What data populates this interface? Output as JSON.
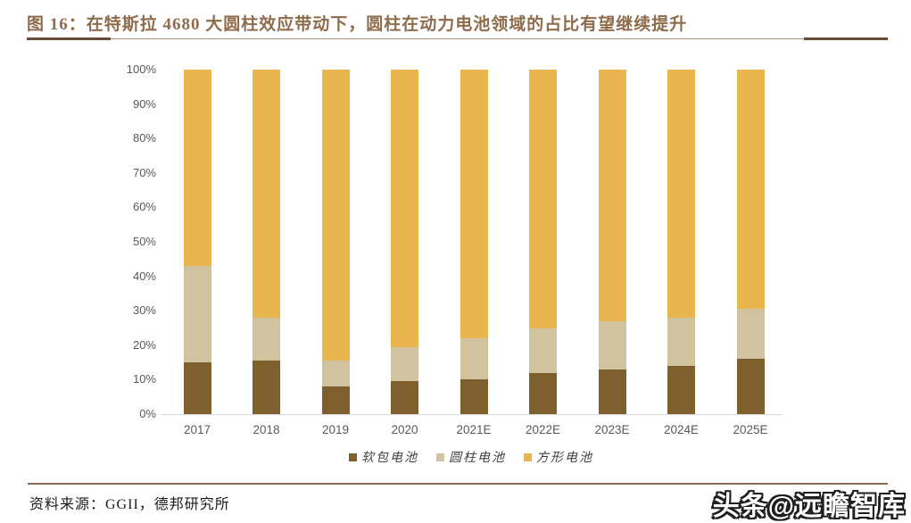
{
  "figure": {
    "title": "图 16：在特斯拉 4680 大圆柱效应带动下，圆柱在动力电池领域的占比有望继续提升",
    "source": "资料来源：GGII，德邦研究所",
    "watermark": "头条@远瞻智库"
  },
  "colors": {
    "title_text": "#8e6c4c",
    "divider_thick": "#6b4c3b",
    "divider_thin": "#a5907e",
    "bottom_divider": "#8a6a55",
    "pouch": "#7e602f",
    "cylindrical": "#d2c3a0",
    "prismatic": "#e9b54e",
    "axis_text": "#595959",
    "axis_line": "#d9d9d9"
  },
  "chart_data": {
    "type": "bar",
    "stacked": true,
    "percent_stacked": true,
    "title": "",
    "xlabel": "",
    "ylabel": "",
    "ylim": [
      0,
      100
    ],
    "grid": false,
    "legend_position": "bottom",
    "y_ticks": [
      "0%",
      "10%",
      "20%",
      "30%",
      "40%",
      "50%",
      "60%",
      "70%",
      "80%",
      "90%",
      "100%"
    ],
    "categories": [
      "2017",
      "2018",
      "2019",
      "2020",
      "2021E",
      "2022E",
      "2023E",
      "2024E",
      "2025E"
    ],
    "series": [
      {
        "name": "软包电池",
        "color_key": "pouch",
        "values": [
          15.0,
          15.5,
          8.0,
          9.5,
          10.0,
          12.0,
          13.0,
          14.0,
          16.0
        ]
      },
      {
        "name": "圆柱电池",
        "color_key": "cylindrical",
        "values": [
          28.0,
          12.5,
          7.5,
          10.0,
          12.0,
          13.0,
          14.0,
          14.0,
          14.5
        ]
      },
      {
        "name": "方形电池",
        "color_key": "prismatic",
        "values": [
          57.0,
          72.0,
          84.5,
          80.5,
          78.0,
          75.0,
          73.0,
          72.0,
          69.5
        ]
      }
    ]
  }
}
